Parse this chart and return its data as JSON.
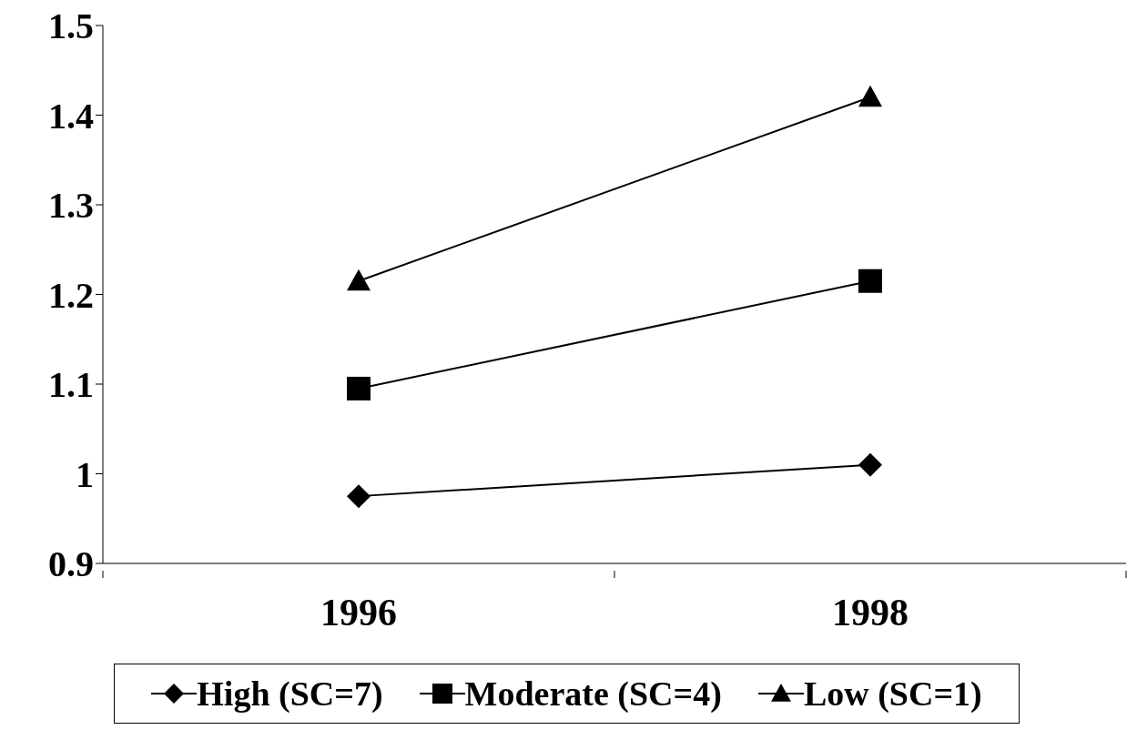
{
  "chart_data": {
    "type": "line",
    "categories": [
      "1996",
      "1998"
    ],
    "series": [
      {
        "name": "High (SC=7)",
        "color": "#000000",
        "marker": "diamond",
        "values": [
          0.975,
          1.01
        ]
      },
      {
        "name": "Moderate (SC=4)",
        "color": "#000000",
        "marker": "square",
        "values": [
          1.095,
          1.215
        ]
      },
      {
        "name": "Low (SC=1)",
        "color": "#000000",
        "marker": "triangle",
        "values": [
          1.215,
          1.42
        ]
      }
    ],
    "ylim": [
      0.9,
      1.5
    ],
    "yticks": [
      {
        "value": 0.9,
        "label": "0.9"
      },
      1,
      {
        "value": 1.1,
        "label": "1.1"
      },
      {
        "value": 1.2,
        "label": "1.2"
      },
      {
        "value": 1.3,
        "label": "1.3"
      },
      {
        "value": 1.4,
        "label": "1.4"
      },
      {
        "value": 1.5,
        "label": "1.5"
      }
    ],
    "grid": false,
    "legend": "bottom",
    "line_style": "solid"
  }
}
